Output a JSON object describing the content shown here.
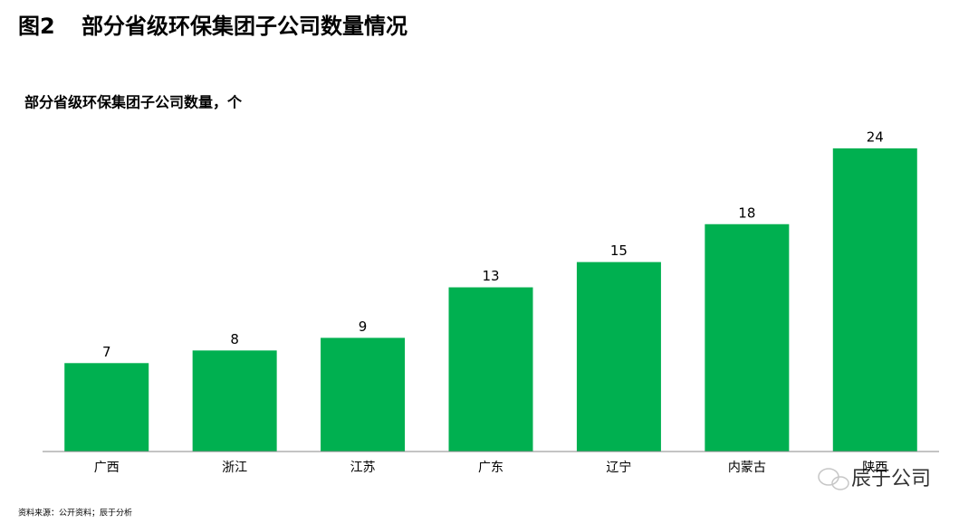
{
  "chart_data": {
    "type": "bar",
    "figure_label": "图2",
    "title": "部分省级环保集团子公司数量情况",
    "subtitle": "部分省级环保集团子公司数量，个",
    "categories": [
      "广西",
      "浙江",
      "江苏",
      "广东",
      "辽宁",
      "内蒙古",
      "陕西"
    ],
    "values": [
      7,
      8,
      9,
      13,
      15,
      18,
      24
    ],
    "color": "#00b050",
    "source": "资料来源：公开资料；辰于分析"
  },
  "watermark": "辰于公司"
}
